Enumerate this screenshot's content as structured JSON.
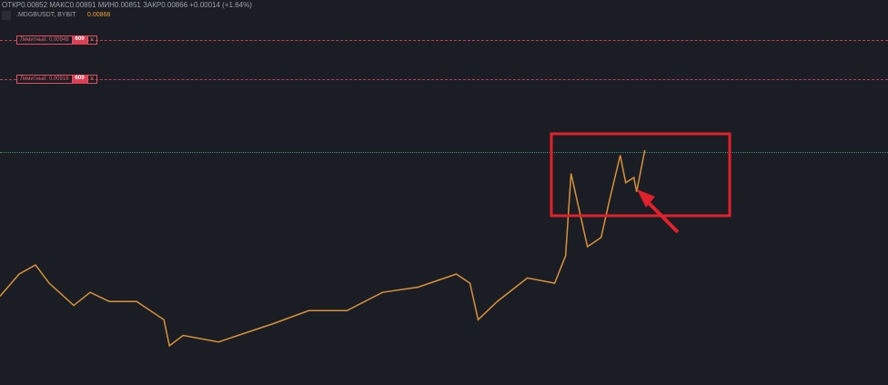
{
  "header": {
    "ohlc": "ОТКР0.00852 МАКС0.00891 МИН0.00851 ЗАКР0.00866 +0.00014 (+1.64%)",
    "symbol": ".MDGBUSDT, BYBIT",
    "last_price": "0.00868"
  },
  "orders": [
    {
      "type": "Лимитный:",
      "price": "0.00948",
      "qty": "600"
    },
    {
      "type": "Лимитный:",
      "price": "0.00918",
      "qty": "600"
    }
  ],
  "chart_data": {
    "type": "line",
    "x": [
      0,
      7,
      13,
      18,
      27,
      33,
      40,
      50,
      60,
      62,
      67,
      80,
      90,
      100,
      113,
      127,
      140,
      153,
      167,
      172,
      175,
      182,
      193,
      203,
      207,
      209,
      212,
      215,
      220,
      223,
      227,
      229,
      232,
      233,
      236
    ],
    "values": [
      0.00752,
      0.00769,
      0.00776,
      0.00762,
      0.00745,
      0.00755,
      0.00748,
      0.00748,
      0.00734,
      0.00714,
      0.00722,
      0.00717,
      0.00724,
      0.00731,
      0.00741,
      0.00741,
      0.00755,
      0.00759,
      0.00769,
      0.00762,
      0.00734,
      0.00748,
      0.00766,
      0.00762,
      0.00783,
      0.00846,
      0.00818,
      0.0079,
      0.00797,
      0.00825,
      0.0086,
      0.00839,
      0.00843,
      0.00832,
      0.00864
    ],
    "xlim": [
      0,
      325
    ],
    "ylim": [
      0.00684,
      0.00979
    ],
    "color": "#d9923a"
  }
}
